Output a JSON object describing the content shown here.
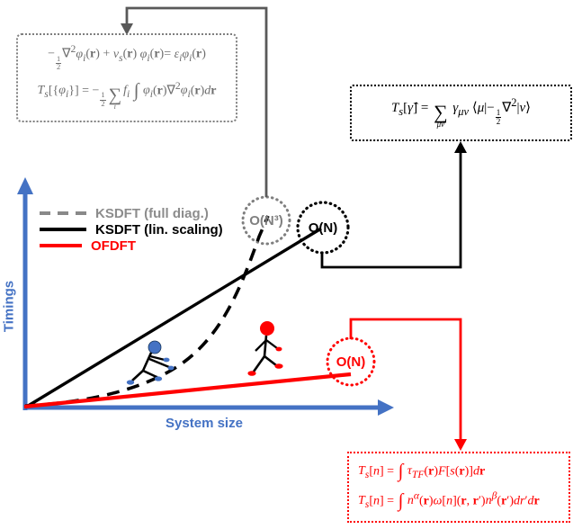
{
  "figure": {
    "description": "Schematic of computational cost scaling: KSDFT (full diagonalization, O(N3)), linear-scaling KSDFT (O(N)) and OFDFT (O(N)) with their kinetic-energy equations"
  },
  "colors": {
    "axis_blue": "#4472C4",
    "gray_dashed_legend": "#898989",
    "gray_annotation": "#7f7f7f",
    "gray_equation_text": "#6e6e6e",
    "connector_dark_gray": "#595959",
    "black": "#000000",
    "red": "#FF0000",
    "background": "#ffffff"
  },
  "axes": {
    "y_label": "Timings",
    "x_label": "System size"
  },
  "legend": {
    "items": [
      {
        "label": "KSDFT (full diag.)",
        "line_style": "dashed",
        "color": "#898989"
      },
      {
        "label": "KSDFT (lin. scaling)",
        "line_style": "solid",
        "color": "#000000"
      },
      {
        "label": "OFDFT",
        "line_style": "solid",
        "color": "#FF0000"
      }
    ]
  },
  "annotations": {
    "ksdft_full_badge": "O(N³)",
    "ksdft_linear_badge": "O(N)",
    "ofdft_badge": "O(N)"
  },
  "equations": {
    "ksdft_box": {
      "line1_html": "−<span class='frac'><span class='ft'>1</span><span>2</span></span>∇<sup>2</sup><i>φ<sub>i</sub></i>(<b>r</b>) + <i>v<sub>s</sub></i>(<b>r</b>) <i>φ<sub>i</sub></i>(<b>r</b>)= <i>ε<sub>i</sub></i><i>φ<sub>i</sub></i>(<b>r</b>)",
      "line2_html": "<i>T<sub>s</sub></i>[{<i>φ<sub>i</sub></i>}] = −<span class='frac'><span class='ft'>1</span><span>2</span></span><span class='bigop'><span class='bsym'>∑</span><span class='blim'><i>i</i></span></span><i>f<sub>i</sub></i> <span class='intg'>∫</span> <i>φ<sub>i</sub></i>(<b>r</b>)∇<sup>2</sup><i>φ<sub>i</sub></i>(<b>r</b>)<i>d</i><b>r</b>"
    },
    "linear_scaling_box": {
      "line1_html": "<i>T<sub>s</sub></i>[<i>γ̂</i>] = <span class='bigop'><span class='bsym'>∑</span><span class='blim'><i>μν</i></span></span> <i>γ<sub>μν</sub></i> ⟨<i>μ</i>|−<span class='frac'><span class='ft'>1</span><span>2</span></span>∇<sup>2</sup>|<i>ν</i>⟩"
    },
    "ofdft_box": {
      "line1_html": "<i>T<sub>s</sub></i>[<i>n</i>] = <span class='intg'>∫</span> <i>τ<sub>TF</sub></i>(<b>r</b>)<i>F</i>[<i>s</i>(<b>r</b>)]<i>d</i><b>r</b>",
      "line2_html": "<i>T<sub>s</sub></i>[<i>n</i>] = <span class='intg'>∫</span> <i>n<sup>α</sup></i>(<b>r</b>)<i>ω</i>[<i>n</i>](<b>r</b>,&nbsp;<b>r</b>′)<i>n<sup>β</sup></i>(<b>r</b>′)<i>dr</i>′<i>d</i><b>r</b>"
    }
  },
  "chart_data": {
    "type": "line",
    "title": "",
    "xlabel": "System size",
    "ylabel": "Timings",
    "grid": false,
    "legend_position": "upper left",
    "axis_ticks": "none (qualitative sketch)",
    "series": [
      {
        "name": "KSDFT (full diag.)",
        "style": "dashed",
        "color": "#000000",
        "scaling": "O(N³)",
        "shape": "cubic growth curve from origin, steepest at large N",
        "x_rel": [
          0.0,
          0.25,
          0.45,
          0.6,
          0.72
        ],
        "y_rel": [
          0.0,
          0.06,
          0.2,
          0.5,
          0.9
        ]
      },
      {
        "name": "KSDFT (lin. scaling)",
        "style": "solid",
        "color": "#000000",
        "scaling": "O(N)",
        "shape": "steep straight line from origin",
        "x_rel": [
          0.0,
          0.82
        ],
        "y_rel": [
          0.0,
          0.8
        ]
      },
      {
        "name": "OFDFT",
        "style": "solid",
        "color": "#FF0000",
        "scaling": "O(N)",
        "shape": "shallow straight line from origin",
        "x_rel": [
          0.0,
          0.9
        ],
        "y_rel": [
          0.0,
          0.15
        ]
      }
    ]
  }
}
